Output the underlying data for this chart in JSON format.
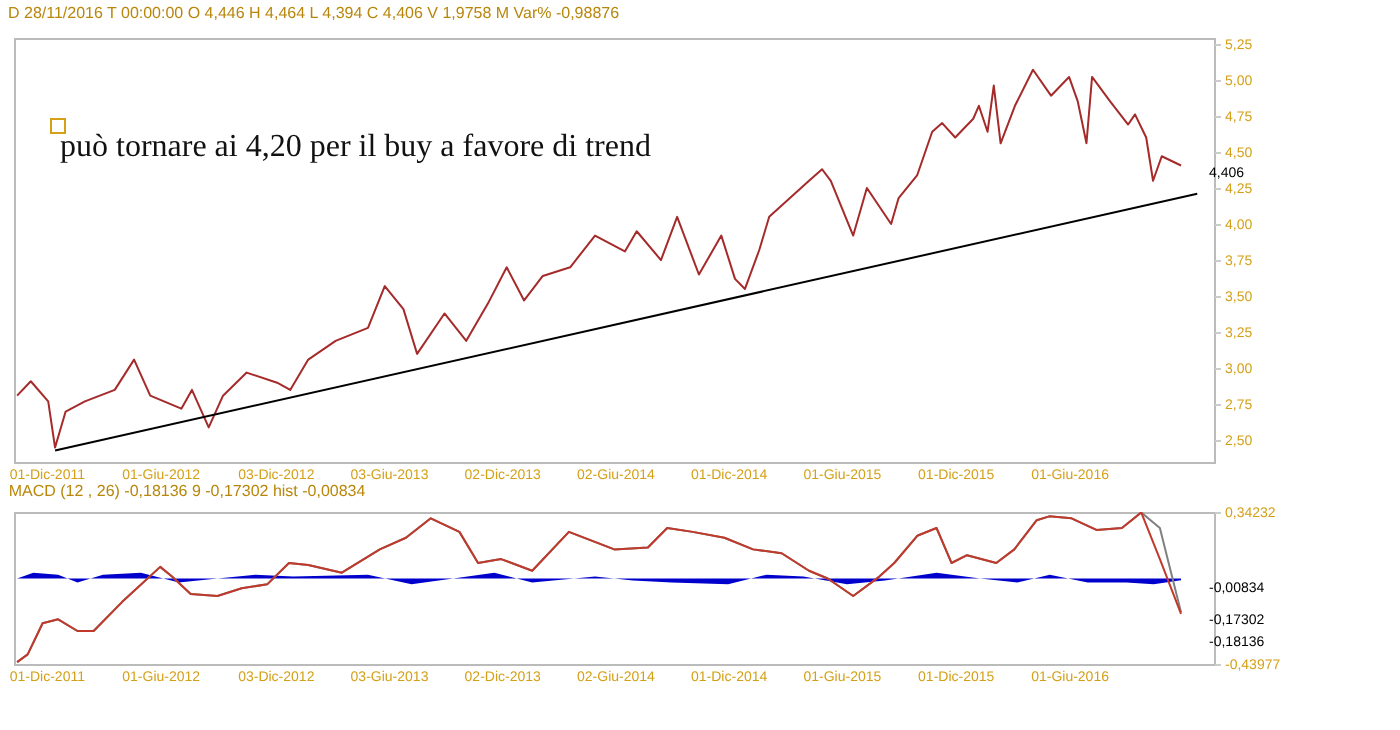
{
  "chart_data": [
    {
      "type": "line",
      "annotations": [
        "D 28/11/2016  T 00:00:00  O 4,446  H 4,464  L 4,394  C 4,406  V 1,9758 M  Var% -0,98876",
        "può tornare ai 4,20 per il buy a favore di trend",
        {
          "text": "4,406",
          "x": "2016-11-28",
          "y": 4.406
        }
      ],
      "xlim": [
        "2011-10-10",
        "2017-01-20"
      ],
      "xticks": [
        {
          "value": "2011-12-01",
          "label": "01-Dic-2011"
        },
        {
          "value": "2012-06-01",
          "label": "01-Giu-2012"
        },
        {
          "value": "2012-12-03",
          "label": "03-Dic-2012"
        },
        {
          "value": "2013-06-03",
          "label": "03-Giu-2013"
        },
        {
          "value": "2013-12-02",
          "label": "02-Dic-2013"
        },
        {
          "value": "2014-06-02",
          "label": "02-Giu-2014"
        },
        {
          "value": "2014-12-01",
          "label": "01-Dic-2014"
        },
        {
          "value": "2015-06-01",
          "label": "01-Giu-2015"
        },
        {
          "value": "2015-12-01",
          "label": "01-Dic-2015"
        },
        {
          "value": "2016-06-01",
          "label": "01-Giu-2016"
        }
      ],
      "ylim": [
        2.35,
        5.29
      ],
      "yticks": [
        {
          "value": 2.5,
          "label": "2,50"
        },
        {
          "value": 2.75,
          "label": "2,75"
        },
        {
          "value": 3,
          "label": "3,00"
        },
        {
          "value": 3.25,
          "label": "3,25"
        },
        {
          "value": 3.5,
          "label": "3,50"
        },
        {
          "value": 3.75,
          "label": "3,75"
        },
        {
          "value": 4,
          "label": "4,00"
        },
        {
          "value": 4.25,
          "label": "4,25"
        },
        {
          "value": 4.5,
          "label": "4,50"
        },
        {
          "value": 4.75,
          "label": "4,75"
        },
        {
          "value": 5,
          "label": "5,00"
        },
        {
          "value": 5.25,
          "label": "5,25"
        }
      ],
      "series": [
        {
          "color": "#a52a2a",
          "x": [
            "2011-10-15",
            "2011-11-06",
            "2011-12-04",
            "2011-12-15",
            "2012-01-01",
            "2012-02-01",
            "2012-03-20",
            "2012-04-20",
            "2012-05-16",
            "2012-07-05",
            "2012-07-22",
            "2012-08-18",
            "2012-09-10",
            "2012-10-18",
            "2012-12-06",
            "2012-12-27",
            "2013-01-25",
            "2013-03-10",
            "2013-05-01",
            "2013-05-28",
            "2013-06-27",
            "2013-07-19",
            "2013-09-01",
            "2013-10-06",
            "2013-11-10",
            "2013-12-10",
            "2014-01-07",
            "2014-02-06",
            "2014-03-22",
            "2014-05-01",
            "2014-06-18",
            "2014-07-07",
            "2014-08-15",
            "2014-09-10",
            "2014-10-15",
            "2014-11-20",
            "2014-12-12",
            "2014-12-28",
            "2015-01-20",
            "2015-02-05",
            "2015-04-10",
            "2015-05-01",
            "2015-05-15",
            "2015-06-20",
            "2015-07-12",
            "2015-08-20",
            "2015-09-01",
            "2015-10-01",
            "2015-10-25",
            "2015-11-10",
            "2015-12-01",
            "2015-12-30",
            "2016-01-08",
            "2016-01-22",
            "2016-02-01",
            "2016-02-12",
            "2016-03-06",
            "2016-04-04",
            "2016-05-03",
            "2016-06-01",
            "2016-06-15",
            "2016-06-29",
            "2016-07-08",
            "2016-08-06",
            "2016-09-04",
            "2016-09-15",
            "2016-10-03",
            "2016-10-14",
            "2016-10-28",
            "2016-11-28"
          ],
          "values": [
            2.81,
            2.91,
            2.77,
            2.45,
            2.7,
            2.77,
            2.85,
            3.06,
            2.81,
            2.72,
            2.85,
            2.59,
            2.81,
            2.97,
            2.9,
            2.85,
            3.06,
            3.19,
            3.28,
            3.57,
            3.41,
            3.1,
            3.38,
            3.19,
            3.45,
            3.7,
            3.47,
            3.64,
            3.7,
            3.92,
            3.81,
            3.95,
            3.75,
            4.05,
            3.65,
            3.92,
            3.62,
            3.55,
            3.82,
            4.05,
            4.3,
            4.38,
            4.3,
            3.92,
            4.25,
            4.0,
            4.18,
            4.34,
            4.64,
            4.7,
            4.6,
            4.73,
            4.82,
            4.64,
            4.96,
            4.56,
            4.82,
            5.07,
            4.89,
            5.02,
            4.85,
            4.56,
            5.02,
            4.85,
            4.69,
            4.76,
            4.6,
            4.3,
            4.47,
            4.406
          ]
        },
        {
          "color": "#000000",
          "x": [
            "2011-12-15",
            "2016-12-24"
          ],
          "values": [
            2.43,
            4.21
          ]
        }
      ]
    },
    {
      "type": "line",
      "title": "MACD  (12 , 26)  -0,18136  9  -0,17302  hist  -0,00834",
      "annotations": [
        {
          "text": "-0,00834",
          "x": "2016-11-28",
          "y": -0.00834
        },
        {
          "text": "-0,17302",
          "x": "2016-11-28",
          "y": -0.17302
        },
        {
          "text": "-0,18136",
          "x": "2016-11-28",
          "y": -0.18136
        }
      ],
      "xlim": [
        "2011-10-10",
        "2017-01-20"
      ],
      "xticks": [
        {
          "value": "2011-12-01",
          "label": "01-Dic-2011"
        },
        {
          "value": "2012-06-01",
          "label": "01-Giu-2012"
        },
        {
          "value": "2012-12-03",
          "label": "03-Dic-2012"
        },
        {
          "value": "2013-06-03",
          "label": "03-Giu-2013"
        },
        {
          "value": "2013-12-02",
          "label": "02-Dic-2013"
        },
        {
          "value": "2014-06-02",
          "label": "02-Giu-2014"
        },
        {
          "value": "2014-12-01",
          "label": "01-Dic-2014"
        },
        {
          "value": "2015-06-01",
          "label": "01-Giu-2015"
        },
        {
          "value": "2015-12-01",
          "label": "01-Dic-2015"
        },
        {
          "value": "2016-06-01",
          "label": "01-Giu-2016"
        }
      ],
      "ylim": [
        -0.43977,
        0.34232
      ],
      "yticks": [
        {
          "value": -0.43977,
          "label": "-0,43977"
        },
        {
          "value": 0.34232,
          "label": "0,34232"
        }
      ],
      "series": [
        {
          "type": "area",
          "color": "#0000cc",
          "x": [
            "2011-10-15",
            "2011-11-10",
            "2011-12-20",
            "2012-01-20",
            "2012-03-01",
            "2012-05-01",
            "2012-07-01",
            "2012-09-01",
            "2012-11-01",
            "2013-01-01",
            "2013-05-01",
            "2013-07-10",
            "2013-09-15",
            "2013-11-20",
            "2014-01-20",
            "2014-05-01",
            "2014-07-01",
            "2014-09-01",
            "2014-12-01",
            "2015-02-01",
            "2015-04-01",
            "2015-06-10",
            "2015-08-10",
            "2015-11-01",
            "2016-01-10",
            "2016-03-10",
            "2016-05-01",
            "2016-07-01",
            "2016-09-01",
            "2016-10-15",
            "2016-11-28"
          ],
          "values": [
            0.0,
            0.03,
            0.02,
            -0.02,
            0.02,
            0.03,
            -0.02,
            0.0,
            0.02,
            0.01,
            0.02,
            -0.03,
            0.0,
            0.03,
            -0.02,
            0.01,
            -0.01,
            -0.02,
            -0.03,
            0.02,
            0.01,
            -0.03,
            -0.01,
            0.03,
            0.0,
            -0.02,
            0.02,
            -0.02,
            -0.02,
            -0.03,
            -0.00834
          ]
        },
        {
          "color": "#808080",
          "x": [
            "2011-10-15",
            "2011-11-01",
            "2011-11-25",
            "2011-12-20",
            "2012-01-20",
            "2012-02-15",
            "2012-04-01",
            "2012-06-01",
            "2012-06-20",
            "2012-07-20",
            "2012-09-01",
            "2012-10-10",
            "2012-11-20",
            "2012-12-25",
            "2013-01-25",
            "2013-03-20",
            "2013-05-20",
            "2013-07-01",
            "2013-08-10",
            "2013-09-25",
            "2013-10-25",
            "2013-12-01",
            "2014-01-20",
            "2014-03-20",
            "2014-06-01",
            "2014-07-25",
            "2014-08-25",
            "2014-10-05",
            "2014-11-25",
            "2015-01-10",
            "2015-02-25",
            "2015-04-10",
            "2015-05-10",
            "2015-06-20",
            "2015-08-01",
            "2015-08-25",
            "2015-10-01",
            "2015-11-01",
            "2015-11-25",
            "2015-12-20",
            "2016-02-05",
            "2016-03-05",
            "2016-04-10",
            "2016-04-30",
            "2016-06-05",
            "2016-07-15",
            "2016-08-25",
            "2016-09-25",
            "2016-10-25",
            "2016-11-28"
          ],
          "values": [
            -0.43,
            -0.39,
            -0.23,
            -0.21,
            -0.27,
            -0.27,
            -0.12,
            0.06,
            0.01,
            -0.08,
            -0.09,
            -0.05,
            -0.03,
            0.08,
            0.07,
            0.03,
            0.15,
            0.21,
            0.31,
            0.24,
            0.08,
            0.1,
            0.04,
            0.24,
            0.15,
            0.16,
            0.26,
            0.24,
            0.21,
            0.15,
            0.13,
            0.04,
            0.0,
            -0.09,
            0.01,
            0.08,
            0.22,
            0.26,
            0.08,
            0.12,
            0.08,
            0.15,
            0.3,
            0.32,
            0.31,
            0.25,
            0.26,
            0.34,
            0.26,
            -0.17302
          ]
        },
        {
          "color": "#c0392b",
          "x": [
            "2011-10-15",
            "2011-11-01",
            "2011-11-25",
            "2011-12-20",
            "2012-01-20",
            "2012-02-15",
            "2012-04-01",
            "2012-06-01",
            "2012-06-20",
            "2012-07-20",
            "2012-09-01",
            "2012-10-10",
            "2012-11-20",
            "2012-12-25",
            "2013-01-25",
            "2013-03-20",
            "2013-05-20",
            "2013-07-01",
            "2013-08-10",
            "2013-09-25",
            "2013-10-25",
            "2013-12-01",
            "2014-01-20",
            "2014-03-20",
            "2014-06-01",
            "2014-07-25",
            "2014-08-25",
            "2014-10-05",
            "2014-11-25",
            "2015-01-10",
            "2015-02-25",
            "2015-04-10",
            "2015-05-10",
            "2015-06-20",
            "2015-08-01",
            "2015-08-25",
            "2015-10-01",
            "2015-11-01",
            "2015-11-25",
            "2015-12-20",
            "2016-02-05",
            "2016-03-05",
            "2016-04-10",
            "2016-04-30",
            "2016-06-05",
            "2016-07-15",
            "2016-08-25",
            "2016-09-25",
            "2016-10-25",
            "2016-11-28"
          ],
          "values": [
            -0.43,
            -0.39,
            -0.23,
            -0.21,
            -0.27,
            -0.27,
            -0.12,
            0.06,
            0.01,
            -0.08,
            -0.09,
            -0.05,
            -0.03,
            0.08,
            0.07,
            0.03,
            0.15,
            0.21,
            0.31,
            0.24,
            0.08,
            0.1,
            0.04,
            0.24,
            0.15,
            0.16,
            0.26,
            0.24,
            0.21,
            0.15,
            0.13,
            0.04,
            0.0,
            -0.09,
            0.01,
            0.08,
            0.22,
            0.26,
            0.08,
            0.12,
            0.08,
            0.15,
            0.3,
            0.32,
            0.31,
            0.25,
            0.26,
            0.34,
            0.1,
            -0.18136
          ]
        }
      ]
    }
  ]
}
